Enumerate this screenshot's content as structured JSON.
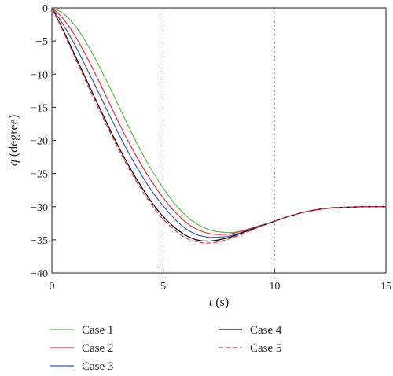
{
  "chart_data": {
    "type": "line",
    "xlabel_var": "t",
    "xlabel_unit": " (s)",
    "ylabel_var": "q",
    "ylabel_unit": " (degree)",
    "xlim": [
      0,
      15
    ],
    "ylim": [
      -40,
      0
    ],
    "x_ticks": [
      0,
      5,
      10,
      15
    ],
    "y_ticks": [
      0,
      -5,
      -10,
      -15,
      -20,
      -25,
      -30,
      -35,
      -40
    ],
    "grid": "vertical dotted lines at x = 5 and x = 10",
    "legend_position": "bottom",
    "x": [
      0,
      0.5,
      1,
      1.5,
      2,
      2.5,
      3,
      3.5,
      4,
      4.5,
      5,
      5.5,
      6,
      6.5,
      7,
      7.5,
      8,
      8.5,
      9,
      9.5,
      10,
      10.5,
      11,
      11.5,
      12,
      12.5,
      13,
      13.5,
      14,
      14.5,
      15
    ],
    "series": [
      {
        "name": "Case 1",
        "color": "#5cbf4a",
        "dash": "solid",
        "values": [
          0,
          -0.8,
          -2.5,
          -5.0,
          -8.0,
          -11.3,
          -14.8,
          -18.3,
          -21.6,
          -24.6,
          -27.2,
          -29.5,
          -31.3,
          -32.6,
          -33.4,
          -33.8,
          -33.9,
          -33.7,
          -33.3,
          -32.8,
          -32.2,
          -31.6,
          -31.1,
          -30.7,
          -30.4,
          -30.2,
          -30.1,
          -30.05,
          -30.0,
          -30.0,
          -30.0
        ]
      },
      {
        "name": "Case 2",
        "color": "#e8323c",
        "dash": "solid",
        "values": [
          0,
          -1.6,
          -4.0,
          -7.0,
          -10.3,
          -13.8,
          -17.3,
          -20.6,
          -23.6,
          -26.3,
          -28.7,
          -30.7,
          -32.3,
          -33.4,
          -34.0,
          -34.2,
          -34.1,
          -33.7,
          -33.2,
          -32.7,
          -32.2,
          -31.6,
          -31.1,
          -30.7,
          -30.4,
          -30.2,
          -30.1,
          -30.05,
          -30.0,
          -30.0,
          -30.0
        ]
      },
      {
        "name": "Case 3",
        "color": "#3b5ba5",
        "dash": "solid",
        "values": [
          0,
          -2.5,
          -5.4,
          -8.7,
          -12.1,
          -15.6,
          -19.0,
          -22.2,
          -25.1,
          -27.7,
          -29.9,
          -31.8,
          -33.3,
          -34.2,
          -34.6,
          -34.6,
          -34.4,
          -33.9,
          -33.3,
          -32.7,
          -32.2,
          -31.6,
          -31.1,
          -30.7,
          -30.4,
          -30.2,
          -30.1,
          -30.05,
          -30.0,
          -30.0,
          -30.0
        ]
      },
      {
        "name": "Case 4",
        "color": "#000000",
        "dash": "solid",
        "values": [
          0,
          -3.3,
          -6.9,
          -10.5,
          -14.1,
          -17.6,
          -21.0,
          -24.1,
          -26.9,
          -29.4,
          -31.5,
          -33.1,
          -34.3,
          -35.0,
          -35.2,
          -35.0,
          -34.6,
          -34.0,
          -33.4,
          -32.8,
          -32.2,
          -31.6,
          -31.1,
          -30.7,
          -30.4,
          -30.2,
          -30.1,
          -30.05,
          -30.0,
          -30.0,
          -30.0
        ]
      },
      {
        "name": "Case 5",
        "color": "#e8323c",
        "dash": "dashed",
        "values": [
          0,
          -3.5,
          -7.2,
          -10.9,
          -14.5,
          -18.0,
          -21.4,
          -24.5,
          -27.3,
          -29.8,
          -31.9,
          -33.5,
          -34.7,
          -35.3,
          -35.5,
          -35.3,
          -34.8,
          -34.2,
          -33.5,
          -32.8,
          -32.2,
          -31.6,
          -31.1,
          -30.7,
          -30.4,
          -30.2,
          -30.1,
          -30.05,
          -30.0,
          -30.0,
          -30.0
        ]
      }
    ]
  }
}
